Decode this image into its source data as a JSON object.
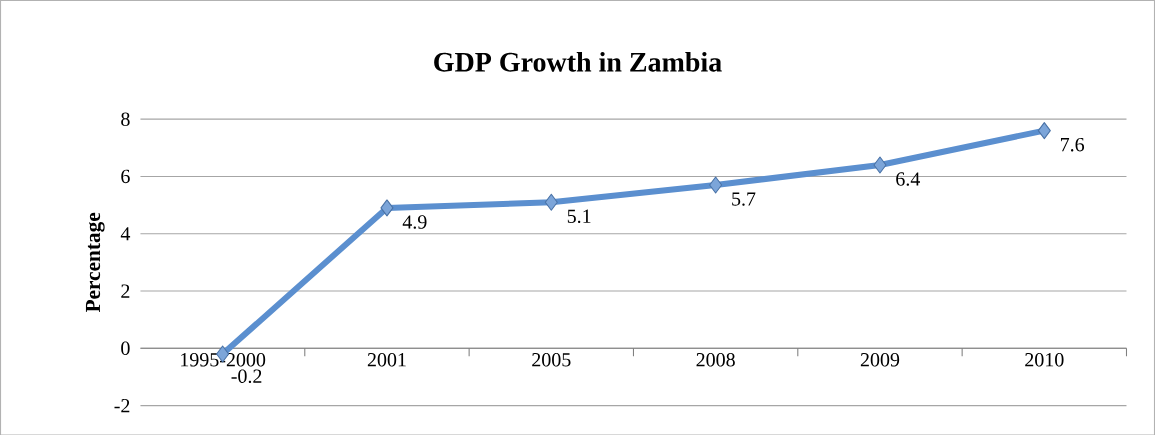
{
  "chart_data": {
    "type": "line",
    "title": "GDP Growth in Zambia",
    "ylabel": "Percentage",
    "categories": [
      "1995-2000",
      "2001",
      "2005",
      "2008",
      "2009",
      "2010"
    ],
    "series": [
      {
        "color": "#5b8fcf",
        "values": [
          -0.2,
          4.9,
          5.1,
          5.7,
          6.4,
          7.6
        ]
      }
    ],
    "ylim": [
      -2,
      8
    ],
    "yticks": [
      -2,
      0,
      2,
      4,
      6,
      8
    ],
    "grid": "y",
    "marker": "diamond",
    "data_labels": true
  }
}
